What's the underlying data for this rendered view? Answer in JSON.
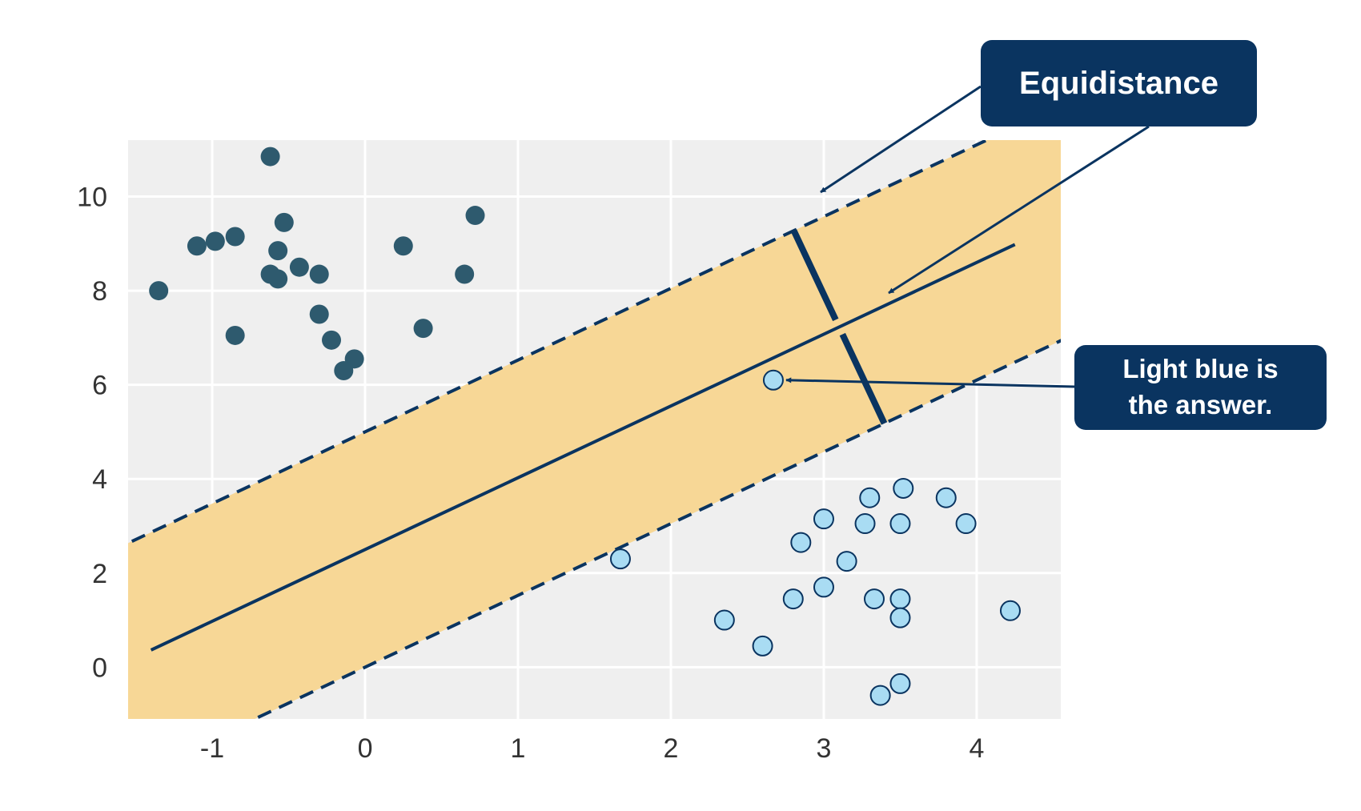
{
  "chart_data": {
    "type": "scatter",
    "title": "",
    "xlabel": "",
    "ylabel": "",
    "xlim": [
      -1.55,
      4.55
    ],
    "ylim": [
      -1.1,
      11.2
    ],
    "xticks": [
      -1,
      0,
      1,
      2,
      3,
      4
    ],
    "yticks": [
      0,
      2,
      4,
      6,
      8,
      10
    ],
    "xtick_labels": [
      "-1",
      "0",
      "1",
      "2",
      "3",
      "4"
    ],
    "ytick_labels": [
      "0",
      "2",
      "4",
      "6",
      "8",
      "10"
    ],
    "grid": true,
    "background_color": "#efefef",
    "margin_color": "#f7d590",
    "series": [
      {
        "color": "#2e5a6e",
        "points": [
          [
            -0.62,
            10.85
          ],
          [
            -0.53,
            9.45
          ],
          [
            -0.57,
            8.85
          ],
          [
            -0.85,
            9.15
          ],
          [
            -0.98,
            9.05
          ],
          [
            -1.1,
            8.95
          ],
          [
            -1.35,
            8.0
          ],
          [
            -0.62,
            8.35
          ],
          [
            -0.57,
            8.25
          ],
          [
            -0.43,
            8.5
          ],
          [
            -0.3,
            8.35
          ],
          [
            0.25,
            8.95
          ],
          [
            0.72,
            9.6
          ],
          [
            0.65,
            8.35
          ],
          [
            -0.85,
            7.05
          ],
          [
            -0.3,
            7.5
          ],
          [
            -0.22,
            6.95
          ],
          [
            0.38,
            7.2
          ],
          [
            -0.07,
            6.55
          ],
          [
            -0.14,
            6.3
          ]
        ]
      },
      {
        "color": "#a9dcf3",
        "points": [
          [
            2.67,
            6.1
          ],
          [
            1.67,
            2.3
          ],
          [
            2.35,
            1.0
          ],
          [
            2.6,
            0.45
          ],
          [
            2.8,
            1.45
          ],
          [
            2.85,
            2.65
          ],
          [
            3.0,
            3.15
          ],
          [
            3.0,
            1.7
          ],
          [
            3.15,
            2.25
          ],
          [
            3.27,
            3.05
          ],
          [
            3.3,
            3.6
          ],
          [
            3.33,
            1.45
          ],
          [
            3.5,
            3.05
          ],
          [
            3.52,
            3.8
          ],
          [
            3.5,
            1.45
          ],
          [
            3.5,
            1.05
          ],
          [
            3.5,
            -0.35
          ],
          [
            3.37,
            -0.6
          ],
          [
            3.8,
            3.6
          ],
          [
            3.93,
            3.05
          ],
          [
            4.22,
            1.2
          ]
        ]
      }
    ],
    "decision_boundary": {
      "slope": 1.525,
      "intercept": 2.5
    },
    "margin_upper": {
      "intercept": 5.0
    },
    "margin_lower": {
      "intercept": 0.0
    },
    "annotations": [
      {
        "text": "Equidistance"
      },
      {
        "text": "Light blue is\nthe answer."
      }
    ]
  }
}
